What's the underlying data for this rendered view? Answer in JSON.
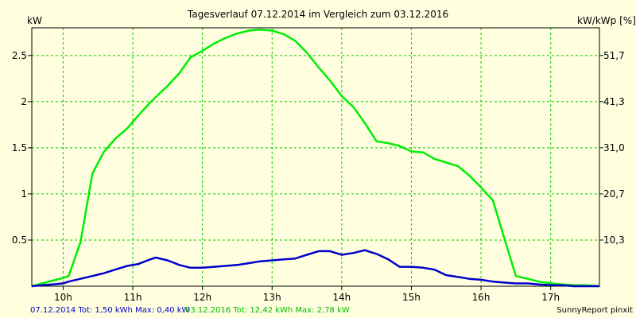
{
  "chart_data": {
    "type": "line",
    "title": "Tagesverlauf 07.12.2014 im Vergleich zum 03.12.2016",
    "ylabel_left": "kW",
    "ylabel_right": "kW/kWp [%]",
    "xlim": [
      9.55,
      17.7
    ],
    "ylim": [
      0,
      2.8
    ],
    "x_ticks": [
      10,
      11,
      12,
      13,
      14,
      15,
      16,
      17
    ],
    "x_tick_labels": [
      "10h",
      "11h",
      "12h",
      "13h",
      "14h",
      "15h",
      "16h",
      "17h"
    ],
    "y_ticks_left": [
      0.5,
      1,
      1.5,
      2,
      2.5
    ],
    "y_tick_labels_left": [
      "0.5",
      "1",
      "1.5",
      "2",
      "2.5"
    ],
    "y_ticks_right": [
      0.5,
      1,
      1.5,
      2,
      2.5
    ],
    "y_tick_labels_right": [
      "10,3",
      "20,7",
      "31,0",
      "41,3",
      "51,7"
    ],
    "grid": true,
    "series": [
      {
        "name": "07.12.2014",
        "color": "#0000cc",
        "x": [
          9.55,
          9.7,
          9.85,
          10.0,
          10.08,
          10.25,
          10.42,
          10.58,
          10.75,
          10.92,
          11.08,
          11.25,
          11.33,
          11.5,
          11.67,
          11.83,
          12.0,
          12.17,
          12.33,
          12.5,
          12.67,
          12.83,
          13.0,
          13.17,
          13.33,
          13.5,
          13.67,
          13.83,
          14.0,
          14.17,
          14.33,
          14.5,
          14.67,
          14.83,
          15.0,
          15.17,
          15.33,
          15.5,
          15.67,
          15.83,
          16.0,
          16.17,
          16.33,
          16.5,
          16.67,
          16.83,
          17.0,
          17.17,
          17.33,
          17.5,
          17.7
        ],
        "y": [
          0.0,
          0.01,
          0.02,
          0.03,
          0.05,
          0.08,
          0.11,
          0.14,
          0.18,
          0.22,
          0.24,
          0.29,
          0.31,
          0.28,
          0.23,
          0.2,
          0.2,
          0.21,
          0.22,
          0.23,
          0.25,
          0.27,
          0.28,
          0.29,
          0.3,
          0.34,
          0.38,
          0.38,
          0.34,
          0.36,
          0.39,
          0.35,
          0.29,
          0.21,
          0.21,
          0.2,
          0.18,
          0.12,
          0.1,
          0.08,
          0.07,
          0.05,
          0.04,
          0.03,
          0.03,
          0.02,
          0.01,
          0.01,
          0.0,
          0.0,
          0.0
        ],
        "total": "1,50 kWh",
        "max": "0,40 kW"
      },
      {
        "name": "03.12.2016",
        "color": "#00ee00",
        "x": [
          9.55,
          9.7,
          9.85,
          10.0,
          10.08,
          10.25,
          10.42,
          10.58,
          10.75,
          10.92,
          11.08,
          11.25,
          11.33,
          11.5,
          11.67,
          11.83,
          12.0,
          12.17,
          12.33,
          12.5,
          12.67,
          12.83,
          13.0,
          13.17,
          13.33,
          13.5,
          13.67,
          13.83,
          14.0,
          14.17,
          14.33,
          14.5,
          14.67,
          14.83,
          15.0,
          15.17,
          15.33,
          15.5,
          15.67,
          15.83,
          16.0,
          16.17,
          16.33,
          16.5,
          16.67,
          16.83,
          17.0,
          17.17,
          17.33,
          17.5,
          17.7
        ],
        "y": [
          0.0,
          0.03,
          0.06,
          0.09,
          0.11,
          0.48,
          1.22,
          1.45,
          1.6,
          1.71,
          1.85,
          1.99,
          2.05,
          2.17,
          2.31,
          2.48,
          2.55,
          2.63,
          2.69,
          2.74,
          2.77,
          2.78,
          2.77,
          2.73,
          2.66,
          2.53,
          2.37,
          2.23,
          2.06,
          1.94,
          1.77,
          1.57,
          1.55,
          1.52,
          1.46,
          1.45,
          1.38,
          1.34,
          1.3,
          1.2,
          1.07,
          0.93,
          0.53,
          0.11,
          0.08,
          0.05,
          0.03,
          0.02,
          0.01,
          0.01,
          0.0
        ],
        "total": "12,42 kWh",
        "max": "2,78 kW"
      }
    ],
    "footer": {
      "legend_blue": "07.12.2014 Tot: 1,50 kWh Max: 0,40 kW",
      "legend_green": "03.12.2016 Tot: 12,42 kWh Max: 2,78 kW",
      "credit": "SunnyReport pinxit"
    }
  }
}
